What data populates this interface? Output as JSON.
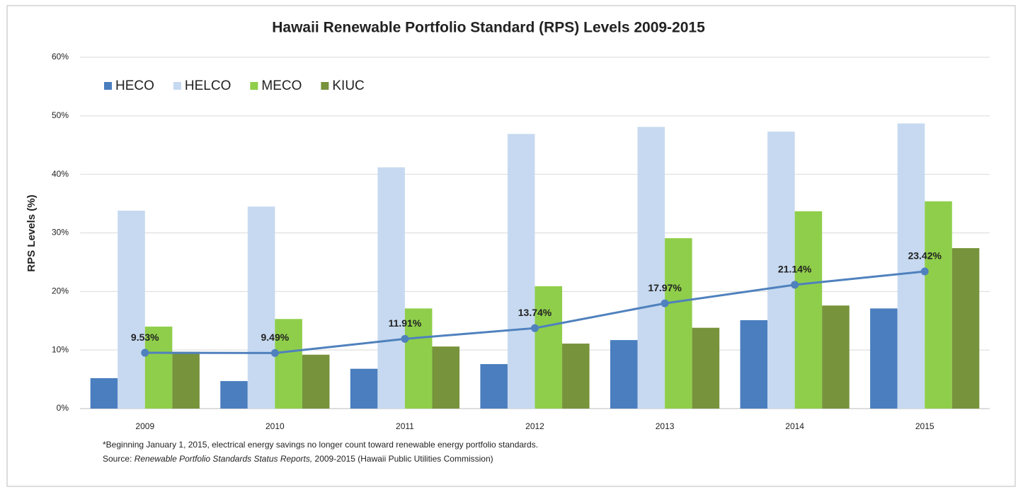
{
  "chart_data": {
    "type": "bar",
    "title": "Hawaii Renewable Portfolio Standard (RPS) Levels 2009-2015",
    "y_label": "RPS Levels (%)",
    "categories": [
      "2009",
      "2010",
      "2011",
      "2012",
      "2013",
      "2014",
      "2015"
    ],
    "series": [
      {
        "name": "HECO",
        "color": "#4a7ebf",
        "values": [
          5.2,
          4.7,
          6.8,
          7.6,
          11.7,
          15.1,
          17.1
        ]
      },
      {
        "name": "HELCO",
        "color": "#c6d9f0",
        "values": [
          33.8,
          34.5,
          41.2,
          46.9,
          48.1,
          47.3,
          48.7
        ]
      },
      {
        "name": "MECO",
        "color": "#8fce4a",
        "values": [
          14.0,
          15.3,
          17.1,
          20.9,
          29.1,
          33.7,
          35.4
        ]
      },
      {
        "name": "KIUC",
        "color": "#77933c",
        "values": [
          9.7,
          9.2,
          10.6,
          11.1,
          13.8,
          17.6,
          27.4
        ]
      }
    ],
    "line": {
      "type": "line",
      "color": "#4f81bd",
      "values": [
        9.53,
        9.49,
        11.91,
        13.74,
        17.97,
        21.14,
        23.42
      ],
      "value_labels": [
        "9.53%",
        "9.49%",
        "11.91%",
        "13.74%",
        "17.97%",
        "21.14%",
        "23.42%"
      ]
    },
    "ylim": [
      0,
      60
    ],
    "yticks": [
      {
        "value": 0,
        "label": "0%"
      },
      {
        "value": 10,
        "label": "10%"
      },
      {
        "value": 20,
        "label": "20%"
      },
      {
        "value": 30,
        "label": "30%"
      },
      {
        "value": 40,
        "label": "40%"
      },
      {
        "value": 50,
        "label": "50%"
      },
      {
        "value": 60,
        "label": "60%"
      }
    ],
    "grid": true,
    "legend": "top-left",
    "note": "*Beginning January 1, 2015, electrical energy savings no longer count toward renewable energy portfolio standards.",
    "source": {
      "prefix": "Source: ",
      "title": "Renewable Portfolio Standards Status Reports,",
      "suffix": " 2009-2015 (Hawaii Public Utilities Commission)"
    }
  }
}
